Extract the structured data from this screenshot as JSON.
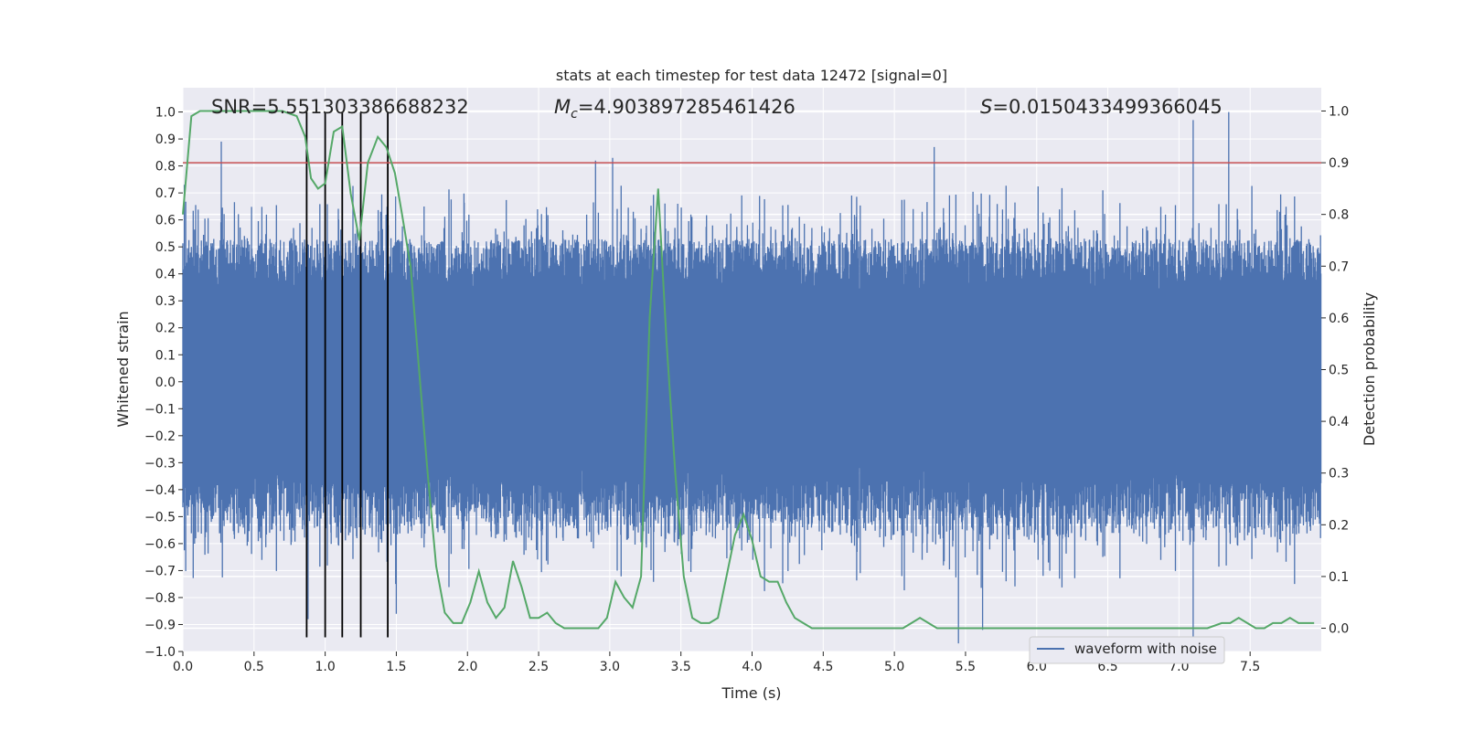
{
  "chart_data": {
    "type": "line",
    "title": "stats at each timestep for test data 12472 [signal=0]",
    "xlabel": "Time (s)",
    "ylabel": "Whitened strain",
    "ylabel_right": "Detection probability",
    "xlim": [
      0.0,
      8.0
    ],
    "ylim": [
      -1.0,
      1.09
    ],
    "ylim_right": [
      -0.045,
      1.045
    ],
    "x_ticks": [
      "0.0",
      "0.5",
      "1.0",
      "1.5",
      "2.0",
      "2.5",
      "3.0",
      "3.5",
      "4.0",
      "4.5",
      "5.0",
      "5.5",
      "6.0",
      "6.5",
      "7.0",
      "7.5"
    ],
    "y_ticks": [
      "−1.0",
      "−0.9",
      "−0.8",
      "−0.7",
      "−0.6",
      "−0.5",
      "−0.4",
      "−0.3",
      "−0.2",
      "−0.1",
      "0.0",
      "0.1",
      "0.2",
      "0.3",
      "0.4",
      "0.5",
      "0.6",
      "0.7",
      "0.8",
      "0.9",
      "1.0"
    ],
    "y_ticks_right": [
      "0.0",
      "0.1",
      "0.2",
      "0.3",
      "0.4",
      "0.5",
      "0.6",
      "0.7",
      "0.8",
      "0.9",
      "1.0"
    ],
    "annotations": {
      "snr": "SNR=5.551303386688232",
      "mc_symbol": "M",
      "mc_sub": "c",
      "mc_value": "=4.903897285461426",
      "s_symbol": "S",
      "s_value": "=0.0150433499366045"
    },
    "legend": {
      "entries": [
        "waveform with noise"
      ],
      "placement": "lower-right"
    },
    "grid": true,
    "series": [
      {
        "name": "waveform with noise",
        "axis": "left",
        "style": "dense noise trace, |amplitude| mostly 0.3–0.7, peaks up to 1.0",
        "peaks": [
          {
            "x": 0.27,
            "y": 0.89
          },
          {
            "x": 1.0,
            "y": 0.94
          },
          {
            "x": 2.9,
            "y": 0.82
          },
          {
            "x": 3.02,
            "y": 0.83
          },
          {
            "x": 5.28,
            "y": 0.87
          },
          {
            "x": 7.1,
            "y": 0.97
          },
          {
            "x": 7.35,
            "y": 1.0
          },
          {
            "x": 0.88,
            "y": -0.88
          },
          {
            "x": 1.5,
            "y": -0.86
          },
          {
            "x": 5.45,
            "y": -0.97
          },
          {
            "x": 5.62,
            "y": -0.92
          },
          {
            "x": 7.1,
            "y": -0.98
          }
        ]
      },
      {
        "name": "",
        "axis": "right",
        "color": "#55a868",
        "x": [
          0.0,
          0.06,
          0.12,
          0.3,
          0.5,
          0.7,
          0.8,
          0.83,
          0.86,
          0.9,
          0.95,
          1.0,
          1.06,
          1.12,
          1.18,
          1.24,
          1.3,
          1.37,
          1.43,
          1.49,
          1.54,
          1.6,
          1.66,
          1.72,
          1.78,
          1.84,
          1.9,
          1.96,
          2.02,
          2.08,
          2.14,
          2.2,
          2.26,
          2.32,
          2.38,
          2.44,
          2.5,
          2.56,
          2.62,
          2.68,
          2.74,
          2.8,
          2.86,
          2.92,
          2.98,
          3.04,
          3.1,
          3.16,
          3.22,
          3.28,
          3.34,
          3.4,
          3.46,
          3.52,
          3.58,
          3.64,
          3.7,
          3.76,
          3.82,
          3.88,
          3.94,
          4.0,
          4.06,
          4.12,
          4.18,
          4.24,
          4.3,
          4.36,
          4.42,
          4.48,
          4.54,
          4.6,
          4.7,
          4.8,
          4.9,
          5.0,
          5.06,
          5.12,
          5.18,
          5.24,
          5.3,
          5.36,
          5.42,
          5.5,
          5.6,
          5.7,
          5.8,
          5.9,
          6.0,
          6.2,
          6.4,
          6.6,
          6.8,
          7.0,
          7.2,
          7.3,
          7.36,
          7.42,
          7.48,
          7.54,
          7.6,
          7.66,
          7.72,
          7.78,
          7.84,
          7.95
        ],
        "values": [
          0.8,
          0.99,
          1.0,
          1.0,
          1.0,
          1.0,
          0.99,
          0.97,
          0.95,
          0.87,
          0.85,
          0.86,
          0.96,
          0.97,
          0.84,
          0.75,
          0.9,
          0.95,
          0.93,
          0.88,
          0.8,
          0.7,
          0.5,
          0.3,
          0.12,
          0.03,
          0.01,
          0.01,
          0.05,
          0.11,
          0.05,
          0.02,
          0.04,
          0.13,
          0.08,
          0.02,
          0.02,
          0.03,
          0.01,
          0.0,
          0.0,
          0.0,
          0.0,
          0.0,
          0.02,
          0.09,
          0.06,
          0.04,
          0.1,
          0.6,
          0.85,
          0.55,
          0.3,
          0.1,
          0.02,
          0.01,
          0.01,
          0.02,
          0.1,
          0.18,
          0.22,
          0.17,
          0.1,
          0.09,
          0.09,
          0.05,
          0.02,
          0.01,
          0.0,
          0.0,
          0.0,
          0.0,
          0.0,
          0.0,
          0.0,
          0.0,
          0.0,
          0.01,
          0.02,
          0.01,
          0.0,
          0.0,
          0.0,
          0.0,
          0.0,
          0.0,
          0.0,
          0.0,
          0.0,
          0.0,
          0.0,
          0.0,
          0.0,
          0.0,
          0.0,
          0.01,
          0.01,
          0.02,
          0.01,
          0.0,
          0.0,
          0.01,
          0.01,
          0.02,
          0.01,
          0.01
        ]
      },
      {
        "name": "",
        "axis": "right",
        "color": "#c44e52",
        "type": "hline",
        "value": 0.9
      }
    ],
    "vlines": {
      "color": "#000000",
      "x": [
        0.87,
        1.0,
        1.12,
        1.25,
        1.44
      ]
    }
  }
}
